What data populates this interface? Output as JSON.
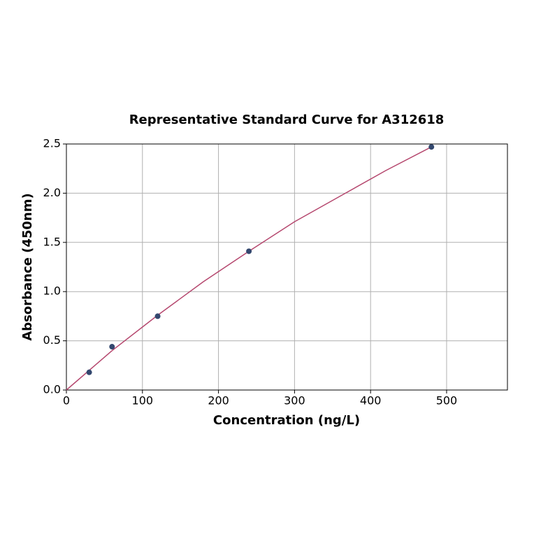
{
  "chart_data": {
    "type": "scatter",
    "title": "Representative Standard Curve for A312618",
    "x_label": "Concentration (ng/L)",
    "y_label": "Absorbance (450nm)",
    "xlim": [
      0,
      580
    ],
    "ylim": [
      0,
      2.5
    ],
    "xticks": [
      0,
      100,
      200,
      300,
      400,
      500
    ],
    "yticks": [
      {
        "value": 0,
        "label": "0.0"
      },
      {
        "value": 0.5,
        "label": "0.5"
      },
      {
        "value": 1,
        "label": "1.0"
      },
      {
        "value": 1.5,
        "label": "1.5"
      },
      {
        "value": 2,
        "label": "2.0"
      },
      {
        "value": 2.5,
        "label": "2.5"
      }
    ],
    "grid": true,
    "series": [
      {
        "type": "line",
        "color": "#b5476e",
        "x": [
          0,
          30,
          60,
          120,
          180,
          240,
          300,
          360,
          420,
          480
        ],
        "values": [
          0,
          0.2,
          0.4,
          0.76,
          1.1,
          1.41,
          1.71,
          1.97,
          2.23,
          2.47
        ]
      },
      {
        "type": "scatter",
        "color": "#33476e",
        "x": [
          30,
          60,
          120,
          240,
          480
        ],
        "values": [
          0.18,
          0.44,
          0.75,
          1.41,
          2.47
        ]
      }
    ]
  }
}
